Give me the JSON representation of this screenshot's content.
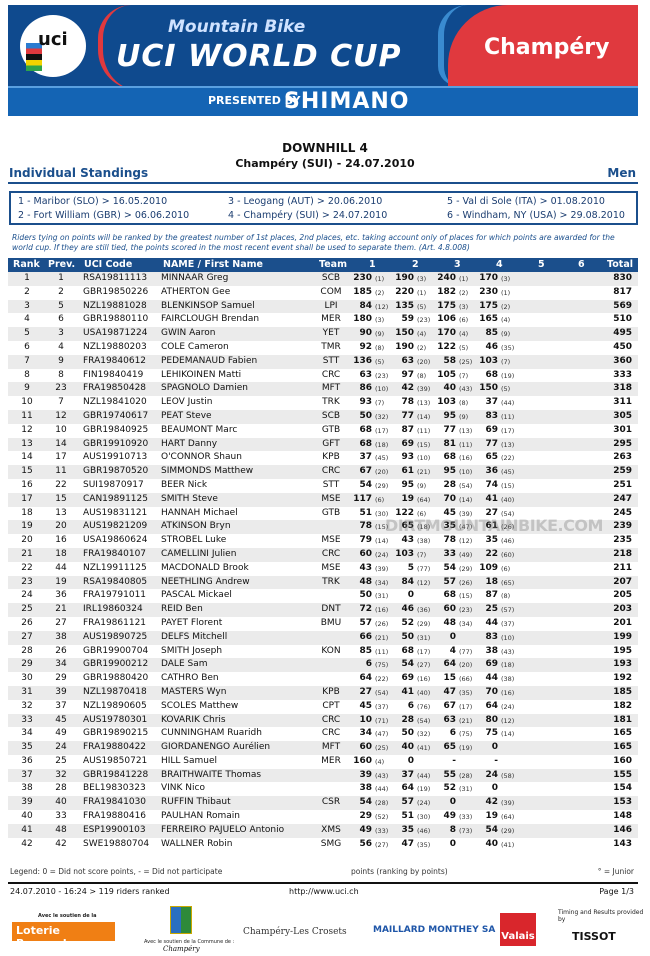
{
  "banner": {
    "line1": "Mountain Bike",
    "line2": "UCI WORLD CUP",
    "venue": "Champéry",
    "presented": "PRESENTED BY",
    "sponsor": "SHIMANO",
    "logo": "uci",
    "colors": {
      "blue": "#0f4a8e",
      "red": "#e0393e",
      "light_blue": "#1464b4"
    }
  },
  "title": "DOWNHILL 4",
  "subtitle": "Champéry (SUI) - 24.07.2010",
  "standings_label": "Individual Standings",
  "category": "Men",
  "events": [
    "1 - Maribor (SLO) > 16.05.2010",
    "2 - Fort William (GBR) > 06.06.2010",
    "3 - Leogang (AUT) > 20.06.2010",
    "4 - Champéry (SUI) > 24.07.2010",
    "5 - Val di Sole (ITA) > 01.08.2010",
    "6 - Windham, NY (USA) > 29.08.2010"
  ],
  "note": "Riders tying on points will be ranked by the greatest number of 1st places, 2nd places, etc. taking account only of places for which points are awarded for the world cup. If they are still tied, the points scored in the most recent event shall be used to separate them. (Art. 4.8.008)",
  "columns": [
    "Rank",
    "Prev.",
    "UCI Code",
    "NAME / First Name",
    "Team",
    "1",
    "2",
    "3",
    "4",
    "5",
    "6",
    "Total"
  ],
  "rows": [
    {
      "rank": "1",
      "prev": "1",
      "code": "RSA19811113",
      "name": "MINNAAR Greg",
      "team": "SCB",
      "r": [
        [
          "230",
          "(1)"
        ],
        [
          "190",
          "(3)"
        ],
        [
          "240",
          "(1)"
        ],
        [
          "170",
          "(3)"
        ]
      ],
      "total": "830"
    },
    {
      "rank": "2",
      "prev": "2",
      "code": "GBR19850226",
      "name": "ATHERTON Gee",
      "team": "COM",
      "r": [
        [
          "185",
          "(2)"
        ],
        [
          "220",
          "(1)"
        ],
        [
          "182",
          "(2)"
        ],
        [
          "230",
          "(1)"
        ]
      ],
      "total": "817"
    },
    {
      "rank": "3",
      "prev": "5",
      "code": "NZL19881028",
      "name": "BLENKINSOP Samuel",
      "team": "LPI",
      "r": [
        [
          "84",
          "(12)"
        ],
        [
          "135",
          "(5)"
        ],
        [
          "175",
          "(3)"
        ],
        [
          "175",
          "(2)"
        ]
      ],
      "total": "569"
    },
    {
      "rank": "4",
      "prev": "6",
      "code": "GBR19880110",
      "name": "FAIRCLOUGH Brendan",
      "team": "MER",
      "r": [
        [
          "180",
          "(3)"
        ],
        [
          "59",
          "(23)"
        ],
        [
          "106",
          "(6)"
        ],
        [
          "165",
          "(4)"
        ]
      ],
      "total": "510"
    },
    {
      "rank": "5",
      "prev": "3",
      "code": "USA19871224",
      "name": "GWIN Aaron",
      "team": "YET",
      "r": [
        [
          "90",
          "(9)"
        ],
        [
          "150",
          "(4)"
        ],
        [
          "170",
          "(4)"
        ],
        [
          "85",
          "(9)"
        ]
      ],
      "total": "495"
    },
    {
      "rank": "6",
      "prev": "4",
      "code": "NZL19880203",
      "name": "COLE Cameron",
      "team": "TMR",
      "r": [
        [
          "92",
          "(8)"
        ],
        [
          "190",
          "(2)"
        ],
        [
          "122",
          "(5)"
        ],
        [
          "46",
          "(35)"
        ]
      ],
      "total": "450"
    },
    {
      "rank": "7",
      "prev": "9",
      "code": "FRA19840612",
      "name": "PEDEMANAUD Fabien",
      "team": "STT",
      "r": [
        [
          "136",
          "(5)"
        ],
        [
          "63",
          "(20)"
        ],
        [
          "58",
          "(25)"
        ],
        [
          "103",
          "(7)"
        ]
      ],
      "total": "360"
    },
    {
      "rank": "8",
      "prev": "8",
      "code": "FIN19840419",
      "name": "LEHIKOINEN Matti",
      "team": "CRC",
      "r": [
        [
          "63",
          "(23)"
        ],
        [
          "97",
          "(8)"
        ],
        [
          "105",
          "(7)"
        ],
        [
          "68",
          "(19)"
        ]
      ],
      "total": "333"
    },
    {
      "rank": "9",
      "prev": "23",
      "code": "FRA19850428",
      "name": "SPAGNOLO Damien",
      "team": "MFT",
      "r": [
        [
          "86",
          "(10)"
        ],
        [
          "42",
          "(39)"
        ],
        [
          "40",
          "(43)"
        ],
        [
          "150",
          "(5)"
        ]
      ],
      "total": "318"
    },
    {
      "rank": "10",
      "prev": "7",
      "code": "NZL19841020",
      "name": "LEOV Justin",
      "team": "TRK",
      "r": [
        [
          "93",
          "(7)"
        ],
        [
          "78",
          "(13)"
        ],
        [
          "103",
          "(8)"
        ],
        [
          "37",
          "(44)"
        ]
      ],
      "total": "311"
    },
    {
      "rank": "11",
      "prev": "12",
      "code": "GBR19740617",
      "name": "PEAT Steve",
      "team": "SCB",
      "r": [
        [
          "50",
          "(32)"
        ],
        [
          "77",
          "(14)"
        ],
        [
          "95",
          "(9)"
        ],
        [
          "83",
          "(11)"
        ]
      ],
      "total": "305"
    },
    {
      "rank": "12",
      "prev": "10",
      "code": "GBR19840925",
      "name": "BEAUMONT Marc",
      "team": "GTB",
      "r": [
        [
          "68",
          "(17)"
        ],
        [
          "87",
          "(11)"
        ],
        [
          "77",
          "(13)"
        ],
        [
          "69",
          "(17)"
        ]
      ],
      "total": "301"
    },
    {
      "rank": "13",
      "prev": "14",
      "code": "GBR19910920",
      "name": "HART Danny",
      "team": "GFT",
      "r": [
        [
          "68",
          "(18)"
        ],
        [
          "69",
          "(15)"
        ],
        [
          "81",
          "(11)"
        ],
        [
          "77",
          "(13)"
        ]
      ],
      "total": "295"
    },
    {
      "rank": "14",
      "prev": "17",
      "code": "AUS19910713",
      "name": "O'CONNOR Shaun",
      "team": "KPB",
      "r": [
        [
          "37",
          "(45)"
        ],
        [
          "93",
          "(10)"
        ],
        [
          "68",
          "(16)"
        ],
        [
          "65",
          "(22)"
        ]
      ],
      "total": "263"
    },
    {
      "rank": "15",
      "prev": "11",
      "code": "GBR19870520",
      "name": "SIMMONDS Matthew",
      "team": "CRC",
      "r": [
        [
          "67",
          "(20)"
        ],
        [
          "61",
          "(21)"
        ],
        [
          "95",
          "(10)"
        ],
        [
          "36",
          "(45)"
        ]
      ],
      "total": "259"
    },
    {
      "rank": "16",
      "prev": "22",
      "code": "SUI19870917",
      "name": "BEER Nick",
      "team": "STT",
      "r": [
        [
          "54",
          "(29)"
        ],
        [
          "95",
          "(9)"
        ],
        [
          "28",
          "(54)"
        ],
        [
          "74",
          "(15)"
        ]
      ],
      "total": "251"
    },
    {
      "rank": "17",
      "prev": "15",
      "code": "CAN19891125",
      "name": "SMITH Steve",
      "team": "MSE",
      "r": [
        [
          "117",
          "(6)"
        ],
        [
          "19",
          "(64)"
        ],
        [
          "70",
          "(14)"
        ],
        [
          "41",
          "(40)"
        ]
      ],
      "total": "247"
    },
    {
      "rank": "18",
      "prev": "13",
      "code": "AUS19831121",
      "name": "HANNAH Michael",
      "team": "GTB",
      "r": [
        [
          "51",
          "(30)"
        ],
        [
          "122",
          "(6)"
        ],
        [
          "45",
          "(39)"
        ],
        [
          "27",
          "(54)"
        ]
      ],
      "total": "245"
    },
    {
      "rank": "19",
      "prev": "20",
      "code": "AUS19821209",
      "name": "ATKINSON Bryn",
      "team": "",
      "r": [
        [
          "78",
          "(15)"
        ],
        [
          "65",
          "(18)"
        ],
        [
          "35",
          "(47)"
        ],
        [
          "61",
          "(26)"
        ]
      ],
      "total": "239"
    },
    {
      "rank": "20",
      "prev": "16",
      "code": "USA19860624",
      "name": "STROBEL Luke",
      "team": "MSE",
      "r": [
        [
          "79",
          "(14)"
        ],
        [
          "43",
          "(38)"
        ],
        [
          "78",
          "(12)"
        ],
        [
          "35",
          "(46)"
        ]
      ],
      "total": "235"
    },
    {
      "rank": "21",
      "prev": "18",
      "code": "FRA19840107",
      "name": "CAMELLINI Julien",
      "team": "CRC",
      "r": [
        [
          "60",
          "(24)"
        ],
        [
          "103",
          "(7)"
        ],
        [
          "33",
          "(49)"
        ],
        [
          "22",
          "(60)"
        ]
      ],
      "total": "218"
    },
    {
      "rank": "22",
      "prev": "44",
      "code": "NZL19911125",
      "name": "MACDONALD Brook",
      "team": "MSE",
      "r": [
        [
          "43",
          "(39)"
        ],
        [
          "5",
          "(77)"
        ],
        [
          "54",
          "(29)"
        ],
        [
          "109",
          "(6)"
        ]
      ],
      "total": "211"
    },
    {
      "rank": "23",
      "prev": "19",
      "code": "RSA19840805",
      "name": "NEETHLING Andrew",
      "team": "TRK",
      "r": [
        [
          "48",
          "(34)"
        ],
        [
          "84",
          "(12)"
        ],
        [
          "57",
          "(26)"
        ],
        [
          "18",
          "(65)"
        ]
      ],
      "total": "207"
    },
    {
      "rank": "24",
      "prev": "36",
      "code": "FRA19791011",
      "name": "PASCAL Mickael",
      "team": "",
      "r": [
        [
          "50",
          "(31)"
        ],
        [
          "0",
          ""
        ],
        [
          "68",
          "(15)"
        ],
        [
          "87",
          "(8)"
        ]
      ],
      "total": "205"
    },
    {
      "rank": "25",
      "prev": "21",
      "code": "IRL19860324",
      "name": "REID Ben",
      "team": "DNT",
      "r": [
        [
          "72",
          "(16)"
        ],
        [
          "46",
          "(36)"
        ],
        [
          "60",
          "(23)"
        ],
        [
          "25",
          "(57)"
        ]
      ],
      "total": "203"
    },
    {
      "rank": "26",
      "prev": "27",
      "code": "FRA19861121",
      "name": "PAYET Florent",
      "team": "BMU",
      "r": [
        [
          "57",
          "(26)"
        ],
        [
          "52",
          "(29)"
        ],
        [
          "48",
          "(34)"
        ],
        [
          "44",
          "(37)"
        ]
      ],
      "total": "201"
    },
    {
      "rank": "27",
      "prev": "38",
      "code": "AUS19890725",
      "name": "DELFS Mitchell",
      "team": "",
      "r": [
        [
          "66",
          "(21)"
        ],
        [
          "50",
          "(31)"
        ],
        [
          "0",
          ""
        ],
        [
          "83",
          "(10)"
        ]
      ],
      "total": "199"
    },
    {
      "rank": "28",
      "prev": "26",
      "code": "GBR19900704",
      "name": "SMITH Joseph",
      "team": "KON",
      "r": [
        [
          "85",
          "(11)"
        ],
        [
          "68",
          "(17)"
        ],
        [
          "4",
          "(77)"
        ],
        [
          "38",
          "(43)"
        ]
      ],
      "total": "195"
    },
    {
      "rank": "29",
      "prev": "34",
      "code": "GBR19900212",
      "name": "DALE Sam",
      "team": "",
      "r": [
        [
          "6",
          "(75)"
        ],
        [
          "54",
          "(27)"
        ],
        [
          "64",
          "(20)"
        ],
        [
          "69",
          "(18)"
        ]
      ],
      "total": "193"
    },
    {
      "rank": "30",
      "prev": "29",
      "code": "GBR19880420",
      "name": "CATHRO Ben",
      "team": "",
      "r": [
        [
          "64",
          "(22)"
        ],
        [
          "69",
          "(16)"
        ],
        [
          "15",
          "(66)"
        ],
        [
          "44",
          "(38)"
        ]
      ],
      "total": "192"
    },
    {
      "rank": "31",
      "prev": "39",
      "code": "NZL19870418",
      "name": "MASTERS Wyn",
      "team": "KPB",
      "r": [
        [
          "27",
          "(54)"
        ],
        [
          "41",
          "(40)"
        ],
        [
          "47",
          "(35)"
        ],
        [
          "70",
          "(16)"
        ]
      ],
      "total": "185"
    },
    {
      "rank": "32",
      "prev": "37",
      "code": "NZL19890605",
      "name": "SCOLES Matthew",
      "team": "CPT",
      "r": [
        [
          "45",
          "(37)"
        ],
        [
          "6",
          "(76)"
        ],
        [
          "67",
          "(17)"
        ],
        [
          "64",
          "(24)"
        ]
      ],
      "total": "182"
    },
    {
      "rank": "33",
      "prev": "45",
      "code": "AUS19780301",
      "name": "KOVARIK Chris",
      "team": "CRC",
      "r": [
        [
          "10",
          "(71)"
        ],
        [
          "28",
          "(54)"
        ],
        [
          "63",
          "(21)"
        ],
        [
          "80",
          "(12)"
        ]
      ],
      "total": "181"
    },
    {
      "rank": "34",
      "prev": "49",
      "code": "GBR19890215",
      "name": "CUNNINGHAM Ruaridh",
      "team": "CRC",
      "r": [
        [
          "34",
          "(47)"
        ],
        [
          "50",
          "(32)"
        ],
        [
          "6",
          "(75)"
        ],
        [
          "75",
          "(14)"
        ]
      ],
      "total": "165"
    },
    {
      "rank": "35",
      "prev": "24",
      "code": "FRA19880422",
      "name": "GIORDANENGO Aurélien",
      "team": "MFT",
      "r": [
        [
          "60",
          "(25)"
        ],
        [
          "40",
          "(41)"
        ],
        [
          "65",
          "(19)"
        ],
        [
          "0",
          ""
        ]
      ],
      "total": "165"
    },
    {
      "rank": "36",
      "prev": "25",
      "code": "AUS19850721",
      "name": "HILL Samuel",
      "team": "MER",
      "r": [
        [
          "160",
          "(4)"
        ],
        [
          "0",
          ""
        ],
        [
          "-",
          ""
        ],
        [
          "-",
          ""
        ]
      ],
      "total": "160"
    },
    {
      "rank": "37",
      "prev": "32",
      "code": "GBR19841228",
      "name": "BRAITHWAITE Thomas",
      "team": "",
      "r": [
        [
          "39",
          "(43)"
        ],
        [
          "37",
          "(44)"
        ],
        [
          "55",
          "(28)"
        ],
        [
          "24",
          "(58)"
        ]
      ],
      "total": "155"
    },
    {
      "rank": "38",
      "prev": "28",
      "code": "BEL19830323",
      "name": "VINK Nico",
      "team": "",
      "r": [
        [
          "38",
          "(44)"
        ],
        [
          "64",
          "(19)"
        ],
        [
          "52",
          "(31)"
        ],
        [
          "0",
          ""
        ]
      ],
      "total": "154"
    },
    {
      "rank": "39",
      "prev": "40",
      "code": "FRA19841030",
      "name": "RUFFIN Thibaut",
      "team": "CSR",
      "r": [
        [
          "54",
          "(28)"
        ],
        [
          "57",
          "(24)"
        ],
        [
          "0",
          ""
        ],
        [
          "42",
          "(39)"
        ]
      ],
      "total": "153"
    },
    {
      "rank": "40",
      "prev": "33",
      "code": "FRA19880416",
      "name": "PAULHAN Romain",
      "team": "",
      "r": [
        [
          "29",
          "(52)"
        ],
        [
          "51",
          "(30)"
        ],
        [
          "49",
          "(33)"
        ],
        [
          "19",
          "(64)"
        ]
      ],
      "total": "148"
    },
    {
      "rank": "41",
      "prev": "48",
      "code": "ESP19900103",
      "name": "FERREIRO PAJUELO Antonio",
      "team": "XMS",
      "r": [
        [
          "49",
          "(33)"
        ],
        [
          "35",
          "(46)"
        ],
        [
          "8",
          "(73)"
        ],
        [
          "54",
          "(29)"
        ]
      ],
      "total": "146"
    },
    {
      "rank": "42",
      "prev": "42",
      "code": "SWE19880704",
      "name": "WALLNER Robin",
      "team": "SMG",
      "r": [
        [
          "56",
          "(27)"
        ],
        [
          "47",
          "(35)"
        ],
        [
          "0",
          ""
        ],
        [
          "40",
          "(41)"
        ]
      ],
      "total": "143"
    }
  ],
  "watermark": "DIRTMOUNTAINBIKE.COM",
  "legend": {
    "left": "Legend:  0 = Did not score points, - = Did not participate",
    "middle": "points (ranking by points)",
    "right": "° = Junior"
  },
  "footer": {
    "left": "24.07.2010 - 16:24 > 119 riders ranked",
    "middle": "http://www.uci.ch",
    "right": "Page 1/3"
  },
  "sponsors": {
    "loterie_caption": "Avec le soutien de la",
    "loterie": "Loterie Romande",
    "commune_caption": "Avec le soutien de la Commune de :",
    "commune": "Champéry",
    "champery": "Champéry-Les Crosets",
    "maillard": "MAILLARD MONTHEY SA",
    "valais": "Valais",
    "timing_caption": "Timing and Results provided by",
    "tissot": "TISSOT"
  }
}
